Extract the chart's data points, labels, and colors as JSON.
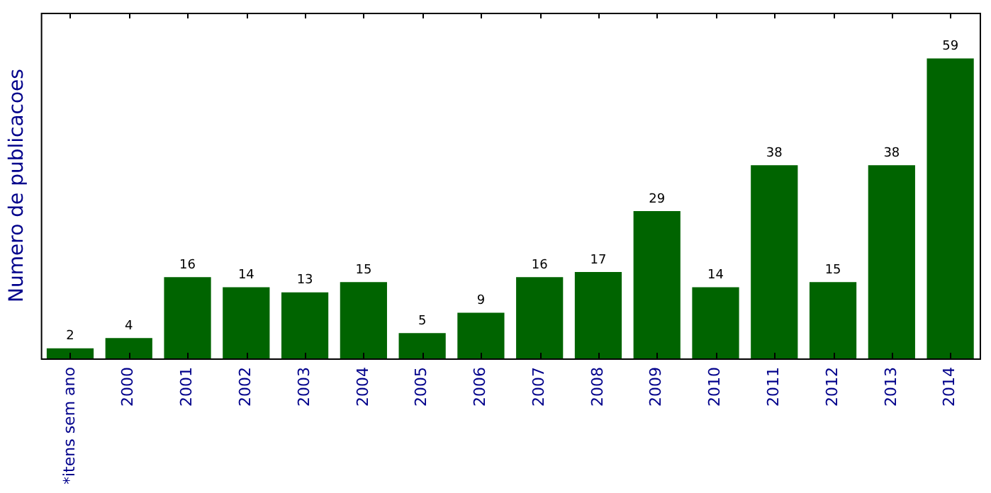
{
  "chart_data": {
    "type": "bar",
    "ylabel": "Numero de publicacoes",
    "categories": [
      "*itens sem ano",
      "2000",
      "2001",
      "2002",
      "2003",
      "2004",
      "2005",
      "2006",
      "2007",
      "2008",
      "2009",
      "2010",
      "2011",
      "2012",
      "2013",
      "2014"
    ],
    "values": [
      2,
      4,
      16,
      14,
      13,
      15,
      5,
      9,
      16,
      17,
      29,
      14,
      38,
      15,
      38,
      59
    ],
    "color": "#006400",
    "ylim": [
      0,
      68
    ],
    "data_labels": true,
    "tick_labels": "x",
    "grid": false,
    "legend": false
  }
}
